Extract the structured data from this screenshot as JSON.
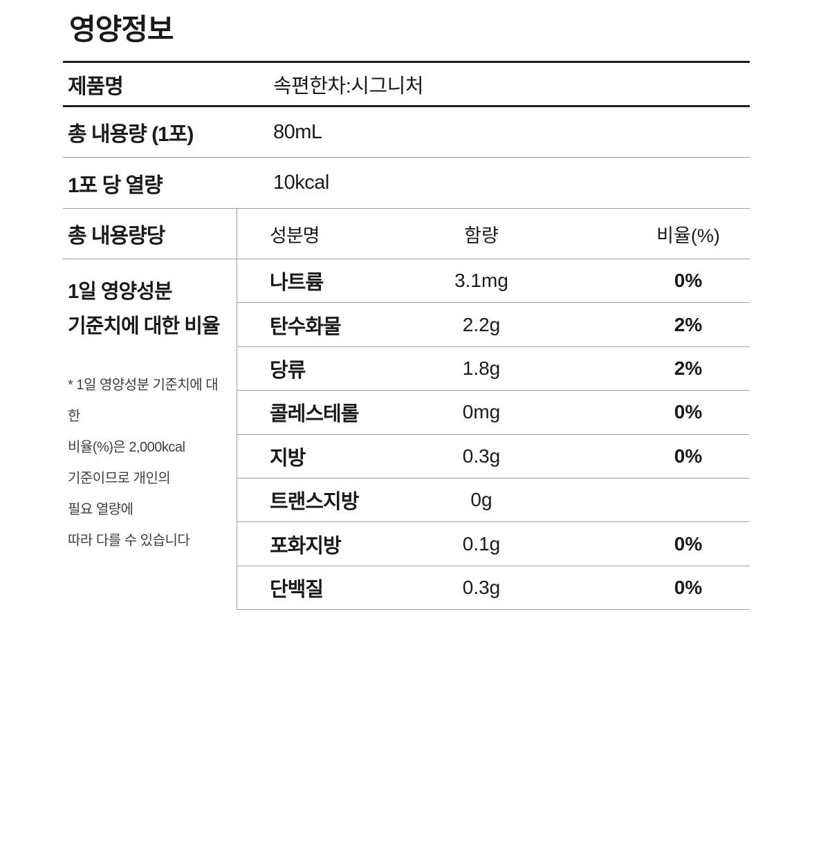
{
  "title": "영양정보",
  "info_rows": [
    {
      "label": "제품명",
      "value": "속편한차:시그니처"
    },
    {
      "label": "총 내용량 (1포)",
      "value": "80mL"
    },
    {
      "label": "1포 당 열량",
      "value": "10kcal"
    }
  ],
  "nutrition_table": {
    "serving_header": "총 내용량당",
    "columns": {
      "name": "성분명",
      "amount": "함량",
      "percent": "비율(%)"
    },
    "side_label": "1일 영양성분\n기준치에 대한 비율",
    "footnote": "* 1일 영양성분 기준치에 대한\n비율(%)은 2,000kcal\n기준이므로 개인의\n필요 열량에\n따라 다를 수 있습니다",
    "rows": [
      {
        "name": "나트륨",
        "amount": "3.1mg",
        "percent": "0%"
      },
      {
        "name": "탄수화물",
        "amount": "2.2g",
        "percent": "2%"
      },
      {
        "name": "당류",
        "amount": "1.8g",
        "percent": "2%"
      },
      {
        "name": "콜레스테롤",
        "amount": "0mg",
        "percent": "0%"
      },
      {
        "name": "지방",
        "amount": "0.3g",
        "percent": "0%"
      },
      {
        "name": "트랜스지방",
        "amount": "0g",
        "percent": ""
      },
      {
        "name": "포화지방",
        "amount": "0.1g",
        "percent": "0%"
      },
      {
        "name": "단백질",
        "amount": "0.3g",
        "percent": "0%"
      }
    ]
  },
  "colors": {
    "background": "#ffffff",
    "text": "#1a1a1a",
    "footnote_text": "#3f3f3f",
    "rule_thick": "#1c1c1c",
    "rule_thin": "#9e9e9e"
  }
}
